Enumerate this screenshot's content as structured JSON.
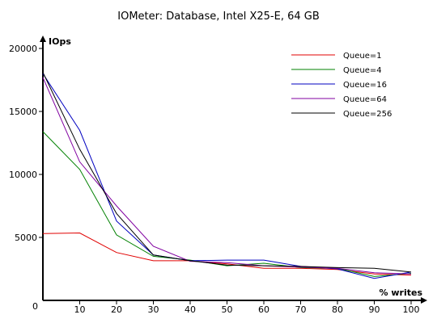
{
  "chart_data": {
    "type": "line",
    "title": "IOMeter: Database, Intel X25-E, 64 GB",
    "xlabel": "% writes",
    "ylabel": "IOps",
    "x": [
      0,
      10,
      20,
      30,
      40,
      50,
      60,
      70,
      80,
      90,
      100
    ],
    "x_ticks": [
      0,
      10,
      20,
      30,
      40,
      50,
      60,
      70,
      80,
      90,
      100
    ],
    "y_ticks": [
      0,
      5000,
      10000,
      15000,
      20000
    ],
    "xlim": [
      0,
      100
    ],
    "ylim": [
      0,
      20000
    ],
    "grid": false,
    "legend_position": "top-right",
    "series": [
      {
        "name": "Queue=1",
        "color": "#e00000",
        "values": [
          5300,
          5350,
          3800,
          3150,
          3150,
          2900,
          2550,
          2550,
          2450,
          2100,
          2000
        ]
      },
      {
        "name": "Queue=4",
        "color": "#008000",
        "values": [
          13400,
          10400,
          5200,
          3500,
          3200,
          2750,
          2950,
          2600,
          2550,
          1900,
          2150
        ]
      },
      {
        "name": "Queue=16",
        "color": "#0000c0",
        "values": [
          18000,
          13500,
          6300,
          3600,
          3150,
          3200,
          3200,
          2700,
          2500,
          1750,
          2250
        ]
      },
      {
        "name": "Queue=64",
        "color": "#8000a0",
        "values": [
          17700,
          11000,
          7500,
          4300,
          3100,
          3000,
          2750,
          2650,
          2550,
          2200,
          2100
        ]
      },
      {
        "name": "Queue=256",
        "color": "#000000",
        "values": [
          18100,
          12000,
          6900,
          3600,
          3150,
          2800,
          2750,
          2700,
          2600,
          2550,
          2250
        ]
      }
    ]
  }
}
